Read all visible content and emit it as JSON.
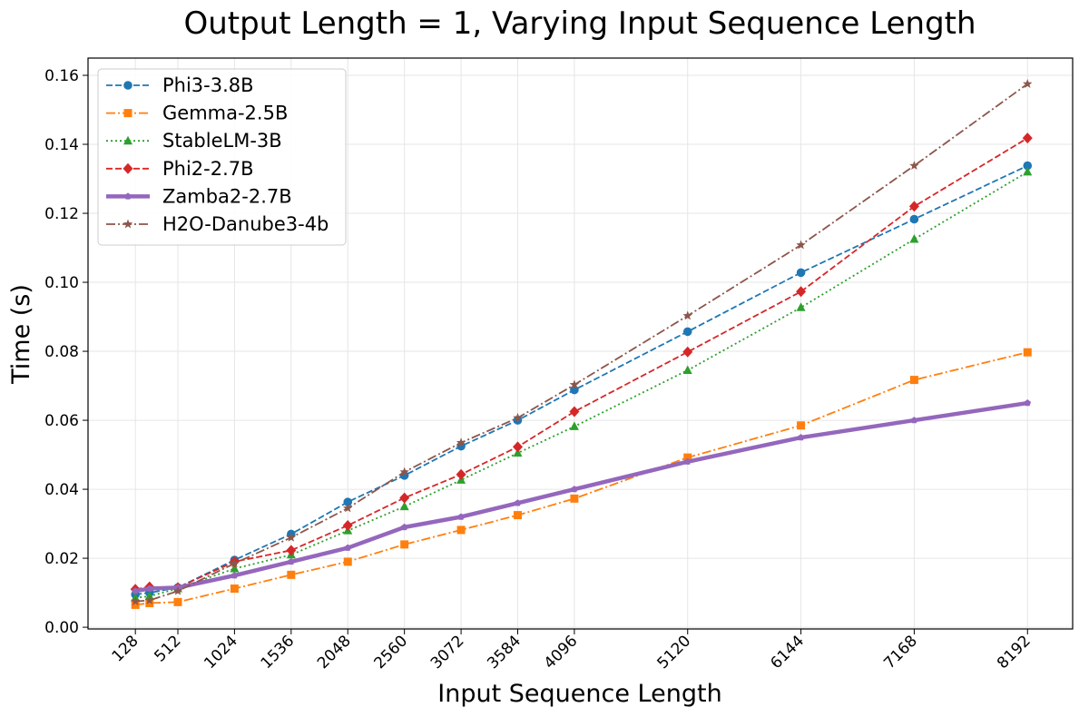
{
  "chart_data": {
    "type": "line",
    "title": "Output Length = 1, Varying Input Sequence Length",
    "xlabel": "Input Sequence Length",
    "ylabel": "Time (s)",
    "x": [
      128,
      256,
      512,
      1024,
      1536,
      2048,
      2560,
      3072,
      3584,
      4096,
      5120,
      6144,
      7168,
      8192
    ],
    "x_tick_labels": [
      "128",
      "512",
      "1024",
      "1536",
      "2048",
      "2560",
      "3072",
      "3584",
      "4096",
      "5120",
      "6144",
      "7168",
      "8192"
    ],
    "x_ticks": [
      128,
      512,
      1024,
      1536,
      2048,
      2560,
      3072,
      3584,
      4096,
      5120,
      6144,
      7168,
      8192
    ],
    "y_ticks": [
      0.0,
      0.02,
      0.04,
      0.06,
      0.08,
      0.1,
      0.12,
      0.14,
      0.16
    ],
    "y_tick_labels": [
      "0.00",
      "0.02",
      "0.04",
      "0.06",
      "0.08",
      "0.10",
      "0.12",
      "0.14",
      "0.16"
    ],
    "xlim": [
      -300,
      8600
    ],
    "ylim": [
      -0.0005,
      0.165
    ],
    "grid": true,
    "legend_position": "top-left",
    "series": [
      {
        "name": "Phi3-3.8B",
        "color": "#1f77b4",
        "marker": "circle",
        "dash": "dashed",
        "values": [
          0.0095,
          0.01,
          0.0115,
          0.0195,
          0.027,
          0.0363,
          0.044,
          0.0525,
          0.06,
          0.0688,
          0.0857,
          0.1028,
          0.1183,
          0.1338
        ]
      },
      {
        "name": "Gemma-2.5B",
        "color": "#ff7f0e",
        "marker": "square",
        "dash": "dashdot",
        "values": [
          0.0065,
          0.007,
          0.0073,
          0.0112,
          0.0152,
          0.019,
          0.024,
          0.0282,
          0.0325,
          0.0373,
          0.0492,
          0.0585,
          0.0717,
          0.0797
        ]
      },
      {
        "name": "StableLM-3B",
        "color": "#2ca02c",
        "marker": "triangle",
        "dash": "dotted",
        "values": [
          0.0085,
          0.009,
          0.0112,
          0.017,
          0.021,
          0.028,
          0.035,
          0.0427,
          0.0505,
          0.0582,
          0.0745,
          0.0927,
          0.1125,
          0.132
        ]
      },
      {
        "name": "Phi2-2.7B",
        "color": "#d62728",
        "marker": "diamond",
        "dash": "dashed",
        "values": [
          0.011,
          0.0117,
          0.0115,
          0.019,
          0.0223,
          0.0295,
          0.0375,
          0.0443,
          0.0523,
          0.0625,
          0.0798,
          0.0973,
          0.122,
          0.1418
        ]
      },
      {
        "name": "Zamba2-2.7B",
        "color": "#9467bd",
        "marker": "pentagon",
        "dash": "solid",
        "linewidth": "thick",
        "values": [
          0.0105,
          0.0112,
          0.0115,
          0.015,
          0.019,
          0.023,
          0.029,
          0.032,
          0.036,
          0.04,
          0.048,
          0.055,
          0.06,
          0.065
        ]
      },
      {
        "name": "H2O-Danube3-4b",
        "color": "#8c564b",
        "marker": "star",
        "dash": "dashdot",
        "values": [
          0.0075,
          0.0078,
          0.0105,
          0.0185,
          0.026,
          0.0345,
          0.045,
          0.0535,
          0.0607,
          0.0703,
          0.0903,
          0.1108,
          0.1338,
          0.1575
        ]
      }
    ]
  }
}
